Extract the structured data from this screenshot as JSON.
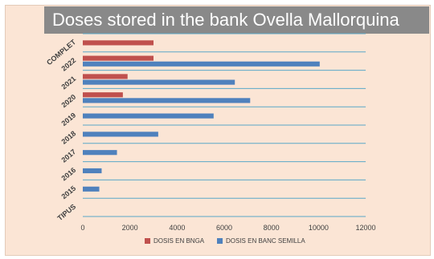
{
  "chart_data": {
    "type": "bar",
    "orientation": "horizontal",
    "title": "Doses stored in the bank Ovella Mallorquina",
    "categories": [
      "TIPUS",
      "2015",
      "2016",
      "2017",
      "2018",
      "2019",
      "2020",
      "2021",
      "2022",
      "COMPLET"
    ],
    "series": [
      {
        "name": "DOSIS EN BNGA",
        "color": "#c0504d",
        "values": [
          null,
          null,
          null,
          null,
          null,
          null,
          1700,
          1900,
          3000,
          3000
        ]
      },
      {
        "name": "DOSIS EN BANC SEMILLA",
        "color": "#4f81bd",
        "values": [
          null,
          700,
          800,
          1450,
          3200,
          5550,
          7100,
          6450,
          10050,
          null
        ]
      }
    ],
    "xlim": [
      0,
      12000
    ],
    "xticks": [
      "0",
      "2000",
      "4000",
      "6000",
      "8000",
      "10000",
      "12000"
    ],
    "grid": true,
    "legend_position": "bottom"
  }
}
